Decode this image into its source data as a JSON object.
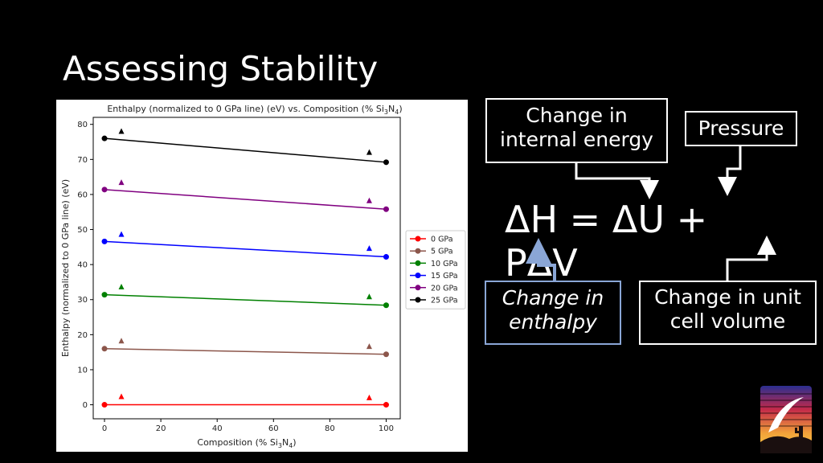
{
  "slide": {
    "title": "Assessing Stability"
  },
  "annotations": {
    "internal_energy": [
      "Change in",
      "internal energy"
    ],
    "pressure": "Pressure",
    "enthalpy": [
      "Change in",
      "enthalpy"
    ],
    "cell_volume": [
      "Change in unit",
      "cell volume"
    ],
    "equation": [
      "ΔH = ΔU +",
      "PΔV"
    ]
  },
  "colors": {
    "background": "#000000",
    "enthalpy_box_border": "#8aa6d6",
    "arrow_up": "#8aa6d6"
  },
  "chart_data": {
    "type": "scatter",
    "title_parts": {
      "main": "Enthalpy (normalized to 0 GPa line) (eV) vs. Composition (% Si",
      "sub3": "3",
      "mid": "N",
      "sub4": "4",
      "end": ")"
    },
    "xlabel_parts": {
      "main": "Composition (% Si",
      "sub3": "3",
      "mid": "N",
      "sub4": "4",
      "end": ")"
    },
    "ylabel": "Enthalpy (normalized to 0 GPa line) (eV)",
    "xlim": [
      -4,
      105
    ],
    "ylim": [
      -4,
      82
    ],
    "xticks": [
      0,
      20,
      40,
      60,
      80,
      100
    ],
    "yticks": [
      0,
      10,
      20,
      30,
      40,
      50,
      60,
      70,
      80
    ],
    "grid": false,
    "legend_position": "right",
    "series": [
      {
        "name": "0 GPa",
        "color": "#ff0000",
        "line": [
          [
            0,
            0
          ],
          [
            100,
            0
          ]
        ],
        "triangles": [
          [
            6,
            2.3
          ],
          [
            94,
            2.0
          ]
        ]
      },
      {
        "name": "5 GPa",
        "color": "#8c564b",
        "line": [
          [
            0,
            16
          ],
          [
            100,
            14.4
          ]
        ],
        "triangles": [
          [
            6,
            18.2
          ],
          [
            94,
            16.6
          ]
        ]
      },
      {
        "name": "10 GPa",
        "color": "#008000",
        "line": [
          [
            0,
            31.4
          ],
          [
            100,
            28.4
          ]
        ],
        "triangles": [
          [
            6,
            33.6
          ],
          [
            94,
            30.8
          ]
        ]
      },
      {
        "name": "15 GPa",
        "color": "#0000ff",
        "line": [
          [
            0,
            46.6
          ],
          [
            100,
            42.2
          ]
        ],
        "triangles": [
          [
            6,
            48.6
          ],
          [
            94,
            44.6
          ]
        ]
      },
      {
        "name": "20 GPa",
        "color": "#800080",
        "line": [
          [
            0,
            61.4
          ],
          [
            100,
            55.8
          ]
        ],
        "triangles": [
          [
            6,
            63.4
          ],
          [
            94,
            58.2
          ]
        ]
      },
      {
        "name": "25 GPa",
        "color": "#000000",
        "line": [
          [
            0,
            76
          ],
          [
            100,
            69.2
          ]
        ],
        "triangles": [
          [
            6,
            78
          ],
          [
            94,
            72
          ]
        ]
      }
    ]
  }
}
